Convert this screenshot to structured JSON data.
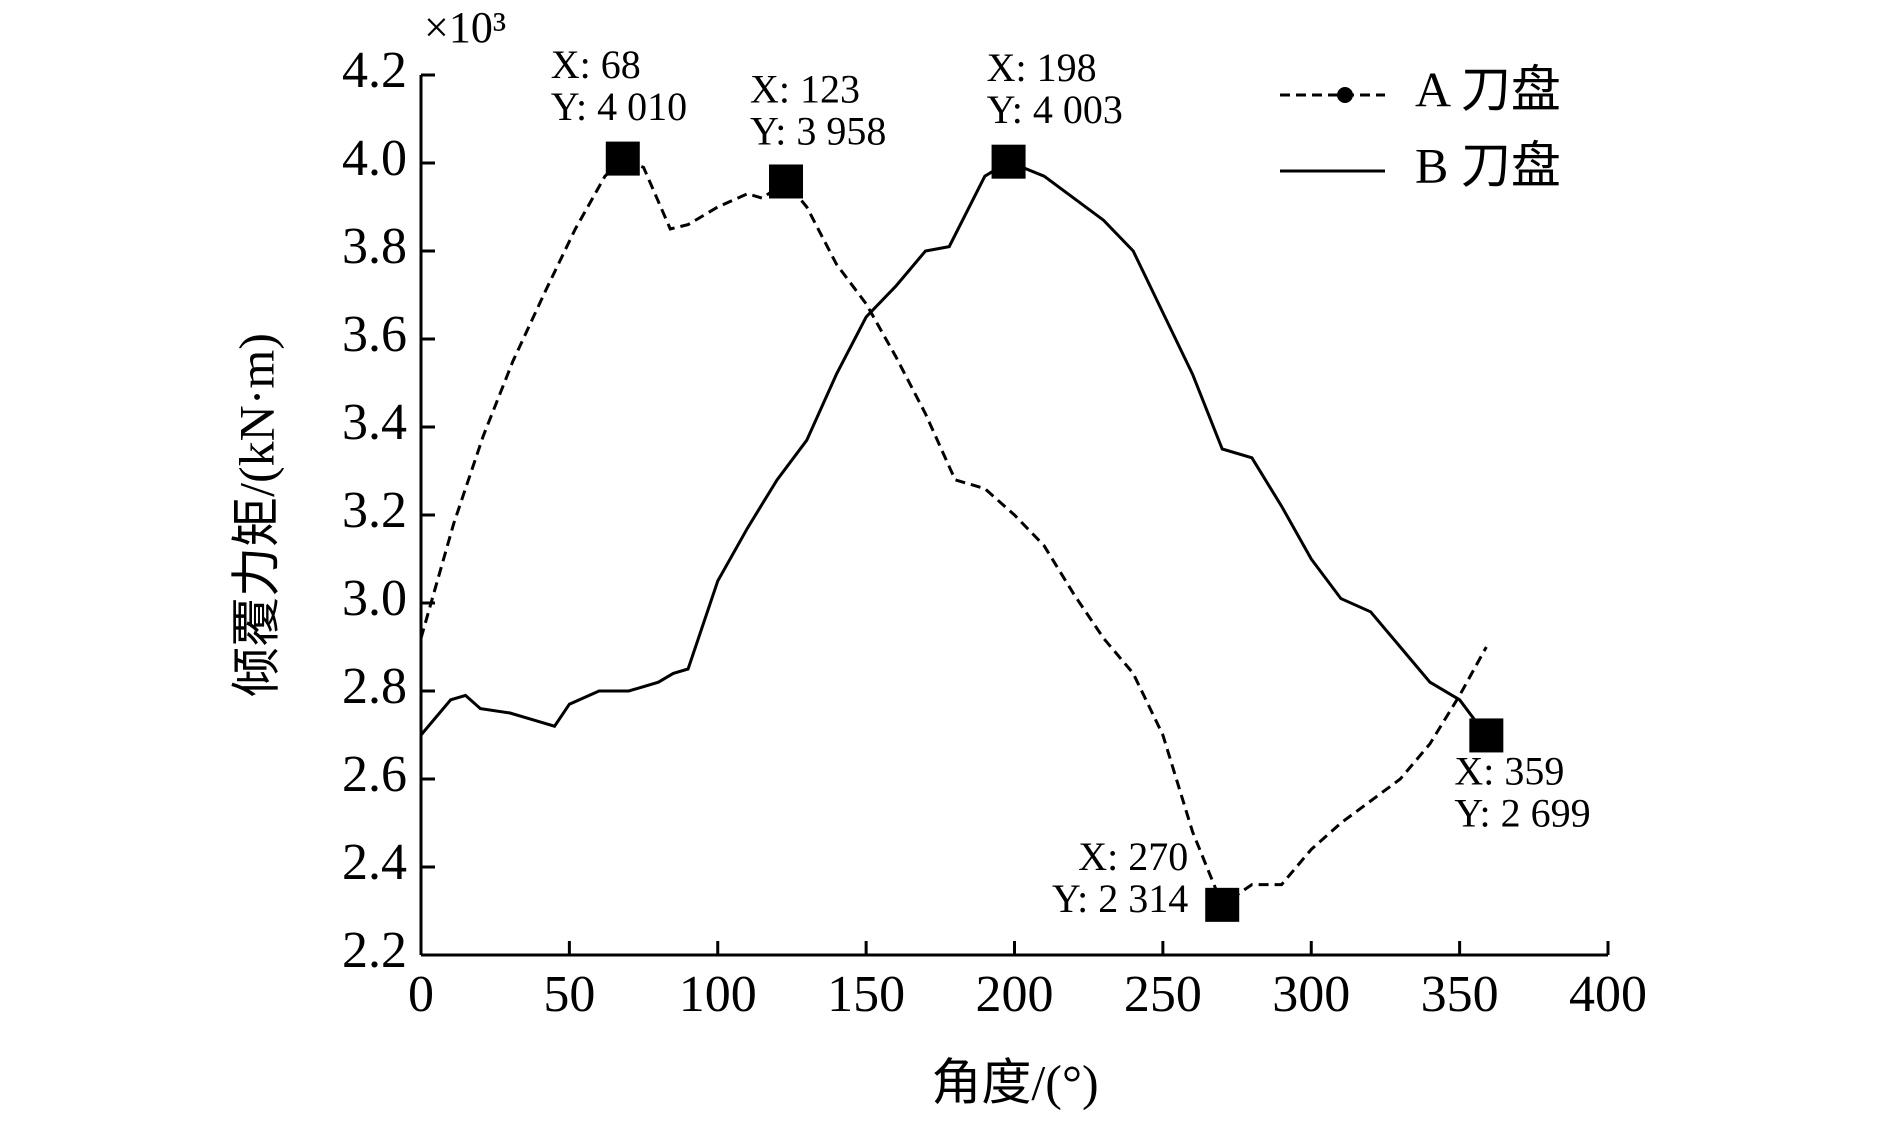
{
  "chart_data": {
    "type": "line",
    "y_label": "倾覆力矩/(kN·m)",
    "x_label": "角度/(°)",
    "y_multiplier": "×10³",
    "xlim": [
      0,
      400
    ],
    "xticks": [
      0,
      50,
      100,
      150,
      200,
      250,
      300,
      350,
      400
    ],
    "ylim": [
      2.2,
      4.2
    ],
    "yticks": [
      2.2,
      2.4,
      2.6,
      2.8,
      {
        "value": 3,
        "label": "3.0"
      },
      3.2,
      3.4,
      3.6,
      3.8,
      {
        "value": 4,
        "label": "4.0"
      },
      4.2
    ],
    "legend": "upper right",
    "series": [
      {
        "name": "A 刀盘",
        "color": "#000000",
        "style": "dashed",
        "x": [
          0,
          11,
          21,
          31,
          42,
          52,
          62,
          68,
          75,
          84,
          90,
          100,
          110,
          115,
          123,
          130,
          140,
          150,
          160,
          170,
          180,
          190,
          200,
          210,
          220,
          230,
          240,
          250,
          260,
          270,
          280,
          290,
          300,
          310,
          320,
          330,
          340,
          350,
          359
        ],
        "values": [
          2.92,
          3.18,
          3.38,
          3.55,
          3.71,
          3.85,
          3.97,
          4.01,
          3.99,
          3.85,
          3.86,
          3.9,
          3.93,
          3.92,
          3.958,
          3.9,
          3.77,
          3.68,
          3.56,
          3.43,
          3.28,
          3.26,
          3.2,
          3.13,
          3.02,
          2.92,
          2.84,
          2.7,
          2.48,
          2.314,
          2.36,
          2.36,
          2.44,
          2.5,
          2.55,
          2.6,
          2.68,
          2.79,
          2.9
        ]
      },
      {
        "name": "B 刀盘",
        "color": "#000000",
        "style": "solid",
        "x": [
          0,
          10,
          15,
          20,
          30,
          40,
          45,
          50,
          60,
          70,
          80,
          85,
          90,
          100,
          110,
          120,
          130,
          140,
          150,
          160,
          170,
          178,
          190,
          198,
          210,
          220,
          230,
          240,
          250,
          260,
          270,
          280,
          290,
          300,
          310,
          320,
          330,
          340,
          350,
          359
        ],
        "values": [
          2.7,
          2.78,
          2.79,
          2.76,
          2.75,
          2.73,
          2.72,
          2.77,
          2.8,
          2.8,
          2.82,
          2.84,
          2.85,
          3.05,
          3.17,
          3.28,
          3.37,
          3.52,
          3.65,
          3.72,
          3.8,
          3.81,
          3.97,
          4.003,
          3.97,
          3.92,
          3.87,
          3.8,
          3.66,
          3.52,
          3.35,
          3.33,
          3.22,
          3.1,
          3.01,
          2.98,
          2.9,
          2.82,
          2.78,
          2.699
        ]
      }
    ],
    "annotations": [
      {
        "x": 68,
        "y": 4.01,
        "text_x": "X: 68",
        "text_y": "Y: 4 010"
      },
      {
        "x": 123,
        "y": 3.958,
        "text_x": "X: 123",
        "text_y": "Y: 3 958"
      },
      {
        "x": 198,
        "y": 4.003,
        "text_x": "X: 198",
        "text_y": "Y: 4 003"
      },
      {
        "x": 270,
        "y": 2.314,
        "text_x": "X: 270",
        "text_y": "Y: 2 314"
      },
      {
        "x": 359,
        "y": 2.699,
        "text_x": "X: 359",
        "text_y": "Y: 2 699"
      }
    ]
  }
}
